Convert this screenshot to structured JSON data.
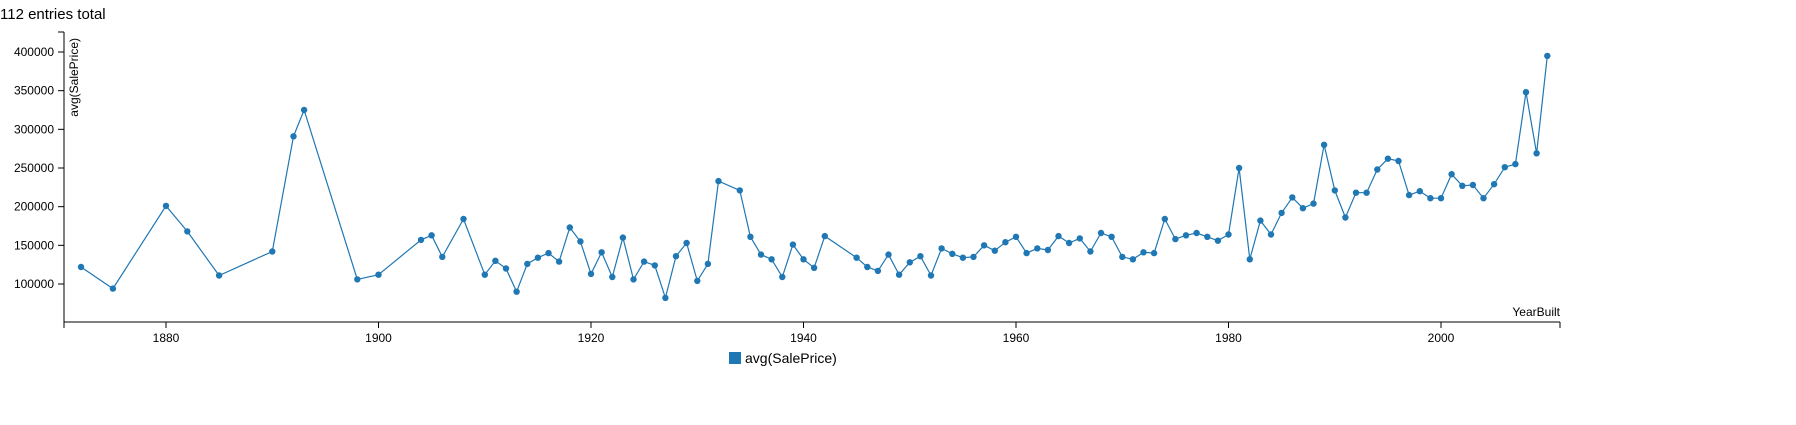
{
  "header": {
    "entries_text": "112 entries total"
  },
  "colors": {
    "series": "#1f77b4",
    "axis": "#000000"
  },
  "chart_data": {
    "type": "line",
    "title": "",
    "xlabel": "YearBuilt",
    "ylabel": "avg(SalePrice)",
    "xlim": [
      1870,
      2010
    ],
    "ylim": [
      50000,
      420000
    ],
    "xticks": [
      1880,
      1900,
      1920,
      1940,
      1960,
      1980,
      2000
    ],
    "yticks": [
      100000,
      150000,
      200000,
      250000,
      300000,
      350000,
      400000
    ],
    "grid": false,
    "legend_position": "bottom-center",
    "series": [
      {
        "name": "avg(SalePrice)",
        "x": [
          1872,
          1875,
          1880,
          1882,
          1885,
          1890,
          1892,
          1893,
          1898,
          1900,
          1904,
          1905,
          1906,
          1908,
          1910,
          1911,
          1912,
          1913,
          1914,
          1915,
          1916,
          1917,
          1918,
          1919,
          1920,
          1921,
          1922,
          1923,
          1924,
          1925,
          1926,
          1927,
          1928,
          1929,
          1930,
          1931,
          1932,
          1934,
          1935,
          1936,
          1937,
          1938,
          1939,
          1940,
          1941,
          1942,
          1945,
          1946,
          1947,
          1948,
          1949,
          1950,
          1951,
          1952,
          1953,
          1954,
          1955,
          1956,
          1957,
          1958,
          1959,
          1960,
          1961,
          1962,
          1963,
          1964,
          1965,
          1966,
          1967,
          1968,
          1969,
          1970,
          1971,
          1972,
          1973,
          1974,
          1975,
          1976,
          1977,
          1978,
          1979,
          1980,
          1981,
          1982,
          1983,
          1984,
          1985,
          1986,
          1987,
          1988,
          1989,
          1990,
          1991,
          1992,
          1993,
          1994,
          1995,
          1996,
          1997,
          1998,
          1999,
          2000,
          2001,
          2002,
          2003,
          2004,
          2005,
          2006,
          2007,
          2008,
          2009,
          2010
        ],
        "values": [
          122000,
          94000,
          201000,
          168000,
          111000,
          142000,
          291000,
          325000,
          106000,
          112000,
          157000,
          163000,
          135000,
          184000,
          112000,
          130000,
          120000,
          90000,
          126000,
          134000,
          140000,
          129000,
          173000,
          155000,
          113000,
          141000,
          109000,
          160000,
          106000,
          129000,
          124000,
          82000,
          136000,
          153000,
          104000,
          126000,
          233000,
          221000,
          161000,
          138000,
          132000,
          109000,
          151000,
          132000,
          121000,
          162000,
          134000,
          122000,
          117000,
          138000,
          112000,
          128000,
          136000,
          111000,
          146000,
          139000,
          134000,
          135000,
          150000,
          143000,
          154000,
          161000,
          140000,
          146000,
          144000,
          162000,
          153000,
          159000,
          142000,
          166000,
          161000,
          135000,
          132000,
          141000,
          140000,
          184000,
          158000,
          163000,
          166000,
          161000,
          156000,
          164000,
          250000,
          132000,
          182000,
          164000,
          192000,
          212000,
          198000,
          204000,
          280000,
          221000,
          186000,
          218000,
          218000,
          248000,
          262000,
          259000,
          215000,
          220000,
          211000,
          211000,
          242000,
          227000,
          228000,
          211000,
          229000,
          251000,
          255000,
          348000,
          269000,
          395000
        ]
      }
    ]
  }
}
